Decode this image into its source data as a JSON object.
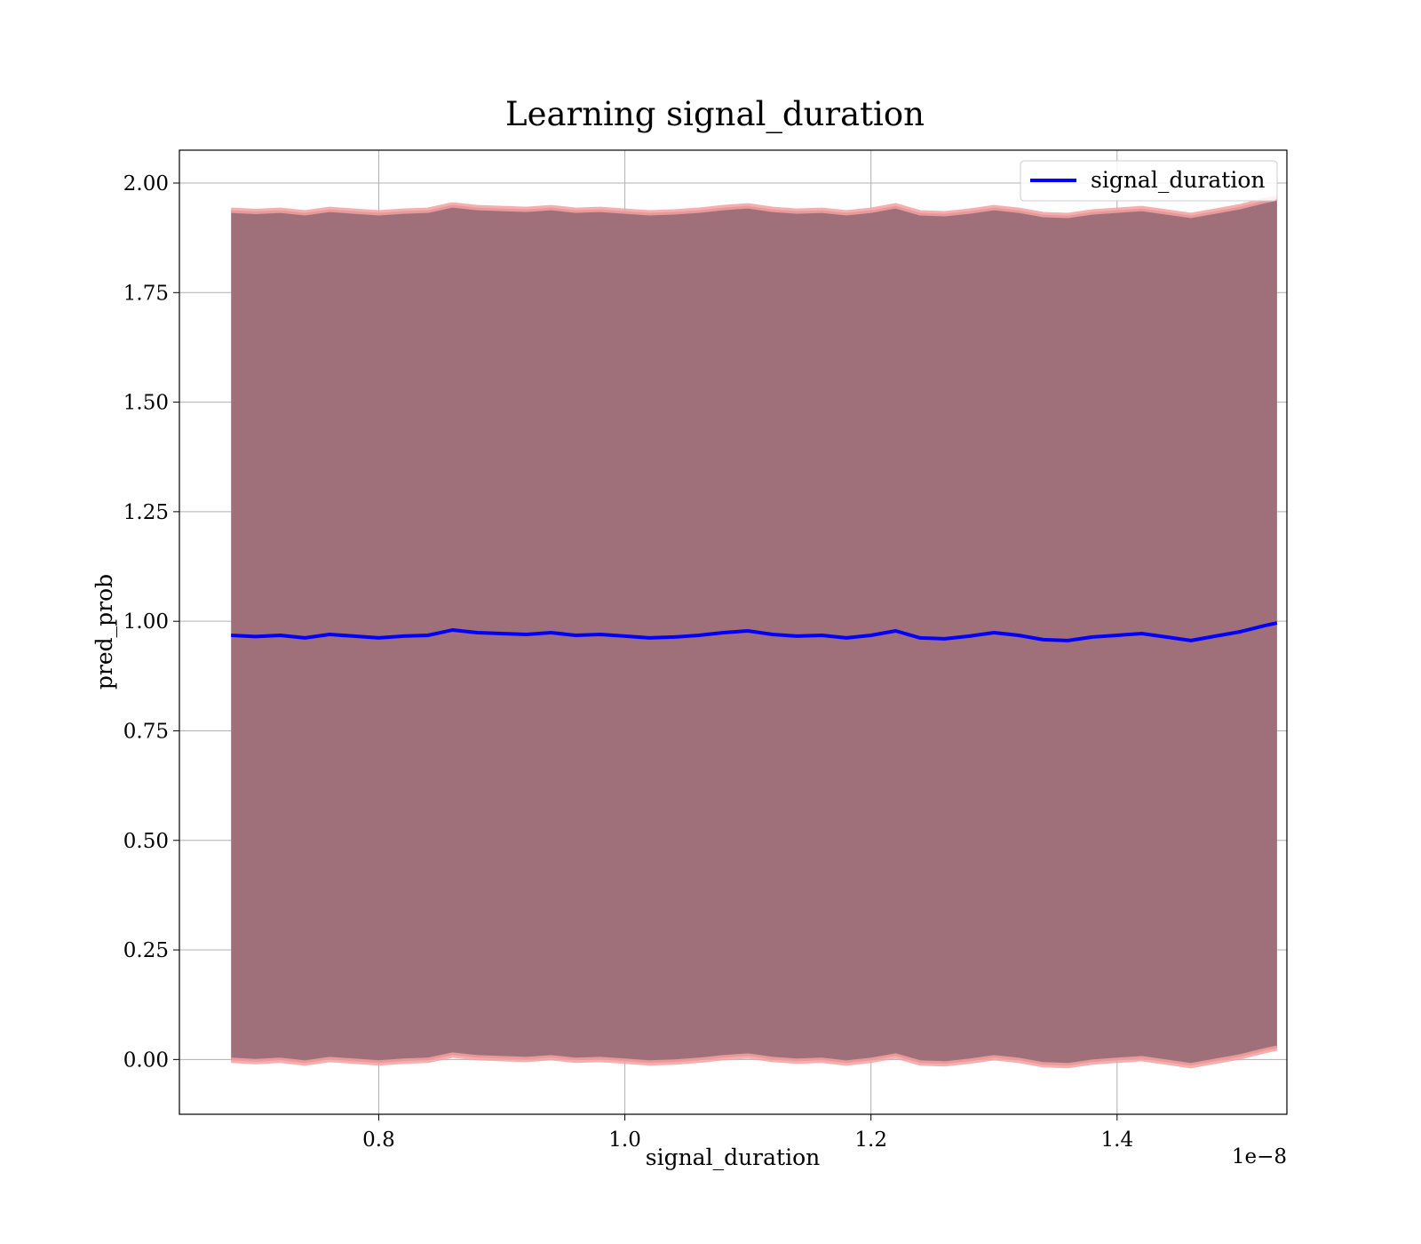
{
  "chart_data": {
    "type": "line",
    "title": "Learning signal_duration",
    "xlabel": "signal_duration",
    "ylabel": "pred_prob",
    "x_offset_label": "1e−8",
    "xlim": [
      0.638,
      1.538
    ],
    "ylim": [
      -0.125,
      2.075
    ],
    "x_ticks": [
      0.8,
      1.0,
      1.2,
      1.4
    ],
    "x_tick_labels": [
      "0.8",
      "1.0",
      "1.2",
      "1.4"
    ],
    "y_ticks": [
      0.0,
      0.25,
      0.5,
      0.75,
      1.0,
      1.25,
      1.5,
      1.75,
      2.0
    ],
    "y_tick_labels": [
      "0.00",
      "0.25",
      "0.50",
      "0.75",
      "1.00",
      "1.25",
      "1.50",
      "1.75",
      "2.00"
    ],
    "grid": true,
    "legend": {
      "position": "upper right",
      "entries": [
        "signal_duration"
      ]
    },
    "series": [
      {
        "name": "signal_duration",
        "color": "#0000ff",
        "x": [
          0.68,
          0.7,
          0.72,
          0.74,
          0.76,
          0.78,
          0.8,
          0.82,
          0.84,
          0.86,
          0.88,
          0.9,
          0.92,
          0.94,
          0.96,
          0.98,
          1.0,
          1.02,
          1.04,
          1.06,
          1.08,
          1.1,
          1.12,
          1.14,
          1.16,
          1.18,
          1.2,
          1.22,
          1.24,
          1.26,
          1.28,
          1.3,
          1.32,
          1.34,
          1.36,
          1.38,
          1.4,
          1.42,
          1.44,
          1.46,
          1.48,
          1.5,
          1.52,
          1.53
        ],
        "y": [
          0.968,
          0.965,
          0.968,
          0.962,
          0.97,
          0.966,
          0.962,
          0.966,
          0.968,
          0.98,
          0.974,
          0.972,
          0.97,
          0.974,
          0.968,
          0.97,
          0.966,
          0.962,
          0.964,
          0.968,
          0.974,
          0.978,
          0.97,
          0.966,
          0.968,
          0.962,
          0.968,
          0.978,
          0.962,
          0.96,
          0.966,
          0.974,
          0.968,
          0.958,
          0.956,
          0.964,
          0.968,
          0.972,
          0.964,
          0.956,
          0.966,
          0.976,
          0.99,
          0.996
        ]
      }
    ],
    "bands": [
      {
        "fill": "#a0707a",
        "edge": "#f4a0a0",
        "half_width": 0.97
      }
    ]
  }
}
